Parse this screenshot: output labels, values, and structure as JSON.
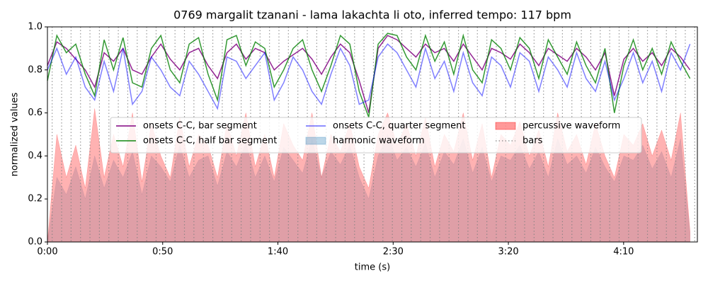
{
  "chart_data": {
    "type": "line",
    "title": "0769 margalit tzanani - lama lakachta li oto, inferred tempo: 117 bpm",
    "xlabel": "time (s)",
    "ylabel": "normalized values",
    "xlim": [
      0,
      282
    ],
    "ylim": [
      0,
      1
    ],
    "xticks": [
      {
        "value": 0,
        "label": "0:00"
      },
      {
        "value": 50,
        "label": "0:50"
      },
      {
        "value": 100,
        "label": "1:40"
      },
      {
        "value": 150,
        "label": "2:30"
      },
      {
        "value": 200,
        "label": "3:20"
      },
      {
        "value": 250,
        "label": "4:10"
      }
    ],
    "yticks": [
      {
        "value": 0,
        "label": "0.0"
      },
      0.2,
      0.4,
      0.6,
      0.8,
      {
        "value": 1,
        "label": "1.0"
      }
    ],
    "x": [
      0,
      4.1,
      8.2,
      12.3,
      16.4,
      20.5,
      24.6,
      28.7,
      32.8,
      36.9,
      41,
      45.1,
      49.2,
      53.3,
      57.4,
      61.5,
      65.6,
      69.7,
      73.8,
      77.9,
      82,
      86.1,
      90.2,
      94.3,
      98.4,
      102.5,
      106.6,
      110.7,
      114.8,
      118.9,
      123,
      127.1,
      131.2,
      135.3,
      139.4,
      143.5,
      147.6,
      151.7,
      155.8,
      159.9,
      164,
      168.1,
      172.2,
      176.3,
      180.4,
      184.5,
      188.6,
      192.7,
      196.8,
      200.9,
      205,
      209.1,
      213.2,
      217.3,
      221.4,
      225.5,
      229.6,
      233.7,
      237.8,
      241.9,
      246,
      250.1,
      254.2,
      258.3,
      262.4,
      266.5,
      270.6,
      274.7,
      278.8
    ],
    "series": [
      {
        "name": "onsets C-C, bar segment",
        "type": "line",
        "color": "#800080",
        "opacity": 0.85,
        "values": [
          0.82,
          0.93,
          0.9,
          0.85,
          0.8,
          0.72,
          0.88,
          0.84,
          0.9,
          0.8,
          0.78,
          0.86,
          0.92,
          0.85,
          0.8,
          0.88,
          0.9,
          0.82,
          0.76,
          0.88,
          0.92,
          0.85,
          0.9,
          0.88,
          0.8,
          0.84,
          0.87,
          0.9,
          0.85,
          0.78,
          0.86,
          0.92,
          0.88,
          0.75,
          0.6,
          0.9,
          0.96,
          0.94,
          0.9,
          0.86,
          0.92,
          0.88,
          0.9,
          0.84,
          0.92,
          0.86,
          0.8,
          0.9,
          0.88,
          0.85,
          0.92,
          0.88,
          0.82,
          0.9,
          0.87,
          0.84,
          0.9,
          0.86,
          0.8,
          0.88,
          0.68,
          0.85,
          0.9,
          0.84,
          0.88,
          0.82,
          0.9,
          0.86,
          0.8
        ]
      },
      {
        "name": "onsets C-C, half bar segment",
        "type": "line",
        "color": "#008000",
        "opacity": 0.8,
        "values": [
          0.75,
          0.96,
          0.88,
          0.92,
          0.78,
          0.68,
          0.94,
          0.8,
          0.95,
          0.74,
          0.72,
          0.9,
          0.96,
          0.8,
          0.74,
          0.92,
          0.95,
          0.78,
          0.66,
          0.94,
          0.96,
          0.82,
          0.93,
          0.9,
          0.72,
          0.8,
          0.9,
          0.94,
          0.8,
          0.7,
          0.82,
          0.96,
          0.92,
          0.7,
          0.58,
          0.92,
          0.97,
          0.96,
          0.86,
          0.8,
          0.96,
          0.84,
          0.93,
          0.78,
          0.96,
          0.8,
          0.74,
          0.94,
          0.9,
          0.8,
          0.95,
          0.9,
          0.76,
          0.94,
          0.86,
          0.78,
          0.93,
          0.82,
          0.74,
          0.9,
          0.6,
          0.82,
          0.94,
          0.8,
          0.9,
          0.78,
          0.93,
          0.84,
          0.76
        ]
      },
      {
        "name": "onsets C-C, quarter segment",
        "type": "line",
        "color": "#0000ff",
        "opacity": 0.5,
        "values": [
          0.8,
          0.9,
          0.78,
          0.86,
          0.72,
          0.66,
          0.84,
          0.7,
          0.9,
          0.64,
          0.7,
          0.86,
          0.8,
          0.72,
          0.68,
          0.84,
          0.78,
          0.7,
          0.62,
          0.86,
          0.84,
          0.76,
          0.82,
          0.88,
          0.66,
          0.74,
          0.86,
          0.8,
          0.7,
          0.64,
          0.78,
          0.9,
          0.82,
          0.64,
          0.66,
          0.86,
          0.92,
          0.88,
          0.8,
          0.72,
          0.9,
          0.76,
          0.84,
          0.7,
          0.88,
          0.74,
          0.68,
          0.86,
          0.82,
          0.72,
          0.88,
          0.84,
          0.7,
          0.86,
          0.8,
          0.72,
          0.88,
          0.76,
          0.7,
          0.84,
          0.66,
          0.76,
          0.88,
          0.74,
          0.84,
          0.7,
          0.88,
          0.8,
          0.92
        ]
      },
      {
        "name": "harmonic waveform",
        "type": "area",
        "color": "#1f77b4",
        "opacity": 0.2,
        "values": [
          0,
          0.3,
          0.22,
          0.35,
          0.2,
          0.4,
          0.25,
          0.38,
          0.3,
          0.42,
          0.22,
          0.4,
          0.35,
          0.28,
          0.45,
          0.3,
          0.38,
          0.4,
          0.26,
          0.42,
          0.35,
          0.46,
          0.3,
          0.4,
          0.28,
          0.44,
          0.38,
          0.32,
          0.48,
          0.3,
          0.42,
          0.36,
          0.45,
          0.3,
          0.2,
          0.4,
          0.5,
          0.38,
          0.44,
          0.35,
          0.46,
          0.3,
          0.42,
          0.36,
          0.48,
          0.32,
          0.44,
          0.28,
          0.4,
          0.38,
          0.45,
          0.34,
          0.42,
          0.3,
          0.48,
          0.36,
          0.4,
          0.32,
          0.44,
          0.35,
          0.28,
          0.4,
          0.38,
          0.45,
          0.34,
          0.42,
          0.3,
          0.48,
          0.04
        ]
      },
      {
        "name": "percussive waveform",
        "type": "area",
        "color": "#ff0000",
        "opacity": 0.3,
        "values": [
          0,
          0.5,
          0.3,
          0.45,
          0.25,
          0.62,
          0.3,
          0.5,
          0.35,
          0.6,
          0.28,
          0.55,
          0.4,
          0.3,
          0.58,
          0.35,
          0.5,
          0.45,
          0.3,
          0.55,
          0.4,
          0.6,
          0.35,
          0.5,
          0.3,
          0.55,
          0.45,
          0.38,
          0.6,
          0.3,
          0.5,
          0.42,
          0.55,
          0.35,
          0.25,
          0.5,
          0.6,
          0.45,
          0.55,
          0.4,
          0.58,
          0.35,
          0.5,
          0.42,
          0.6,
          0.38,
          0.55,
          0.3,
          0.5,
          0.45,
          0.56,
          0.4,
          0.52,
          0.35,
          0.6,
          0.42,
          0.5,
          0.36,
          0.55,
          0.4,
          0.3,
          0.5,
          0.45,
          0.55,
          0.4,
          0.52,
          0.38,
          0.6,
          0.05
        ]
      },
      {
        "name": "bars",
        "type": "vlines",
        "color": "#808080",
        "opacity": 0.8,
        "values": [
          2.05,
          6.15,
          10.25,
          14.35,
          18.45,
          22.55,
          26.65,
          30.75,
          34.85,
          38.95,
          43.05,
          47.15,
          51.25,
          55.35,
          59.45,
          63.55,
          67.65,
          71.75,
          75.85,
          79.95,
          84.05,
          88.15,
          92.25,
          96.35,
          100.45,
          104.55,
          108.65,
          112.75,
          116.85,
          120.95,
          125.05,
          129.15,
          133.25,
          137.35,
          141.45,
          145.55,
          149.65,
          153.75,
          157.85,
          161.95,
          166.05,
          170.15,
          174.25,
          178.35,
          182.45,
          186.55,
          190.65,
          194.75,
          198.85,
          202.95,
          207.05,
          211.15,
          215.25,
          219.35,
          223.45,
          227.55,
          231.65,
          235.75,
          239.85,
          243.95,
          248.05,
          252.15,
          256.25,
          260.35,
          264.45,
          268.55,
          272.65,
          276.75,
          280.85
        ]
      }
    ]
  }
}
